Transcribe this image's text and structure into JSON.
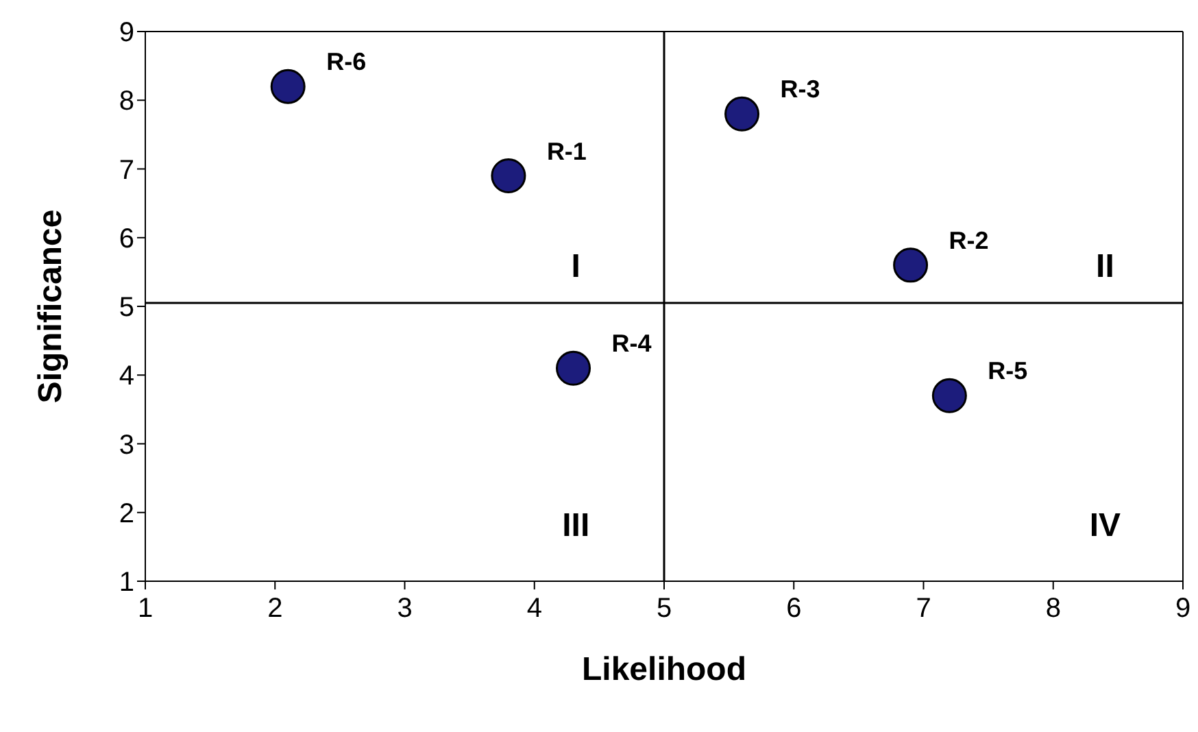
{
  "chart_data": {
    "type": "scatter",
    "xlabel": "Likelihood",
    "ylabel": "Significance",
    "xlim": [
      1,
      9
    ],
    "xticks": [
      1,
      2,
      3,
      4,
      5,
      6,
      7,
      8,
      9
    ],
    "ylim": [
      1,
      9
    ],
    "yticks": [
      1,
      2,
      3,
      4,
      5,
      6,
      7,
      8,
      9
    ],
    "grid": false,
    "legend": false,
    "marker": "circle",
    "series": [
      {
        "name": "R-6",
        "color": "#1c1c7c",
        "x": [
          2.1
        ],
        "values": [
          8.2
        ]
      },
      {
        "name": "R-1",
        "color": "#1c1c7c",
        "x": [
          3.8
        ],
        "values": [
          6.9
        ]
      },
      {
        "name": "R-3",
        "color": "#1c1c7c",
        "x": [
          5.6
        ],
        "values": [
          7.8
        ]
      },
      {
        "name": "R-2",
        "color": "#1c1c7c",
        "x": [
          6.9
        ],
        "values": [
          5.6
        ]
      },
      {
        "name": "R-4",
        "color": "#1c1c7c",
        "x": [
          4.3
        ],
        "values": [
          4.1
        ]
      },
      {
        "name": "R-5",
        "color": "#1c1c7c",
        "x": [
          7.2
        ],
        "values": [
          3.7
        ]
      }
    ],
    "ref_lines": [
      {
        "axis": "x",
        "value": 5,
        "color": "#000000"
      },
      {
        "axis": "y",
        "value": 5.05,
        "color": "#000000"
      }
    ],
    "annotations": [
      "I",
      "II",
      "III",
      "IV"
    ]
  }
}
